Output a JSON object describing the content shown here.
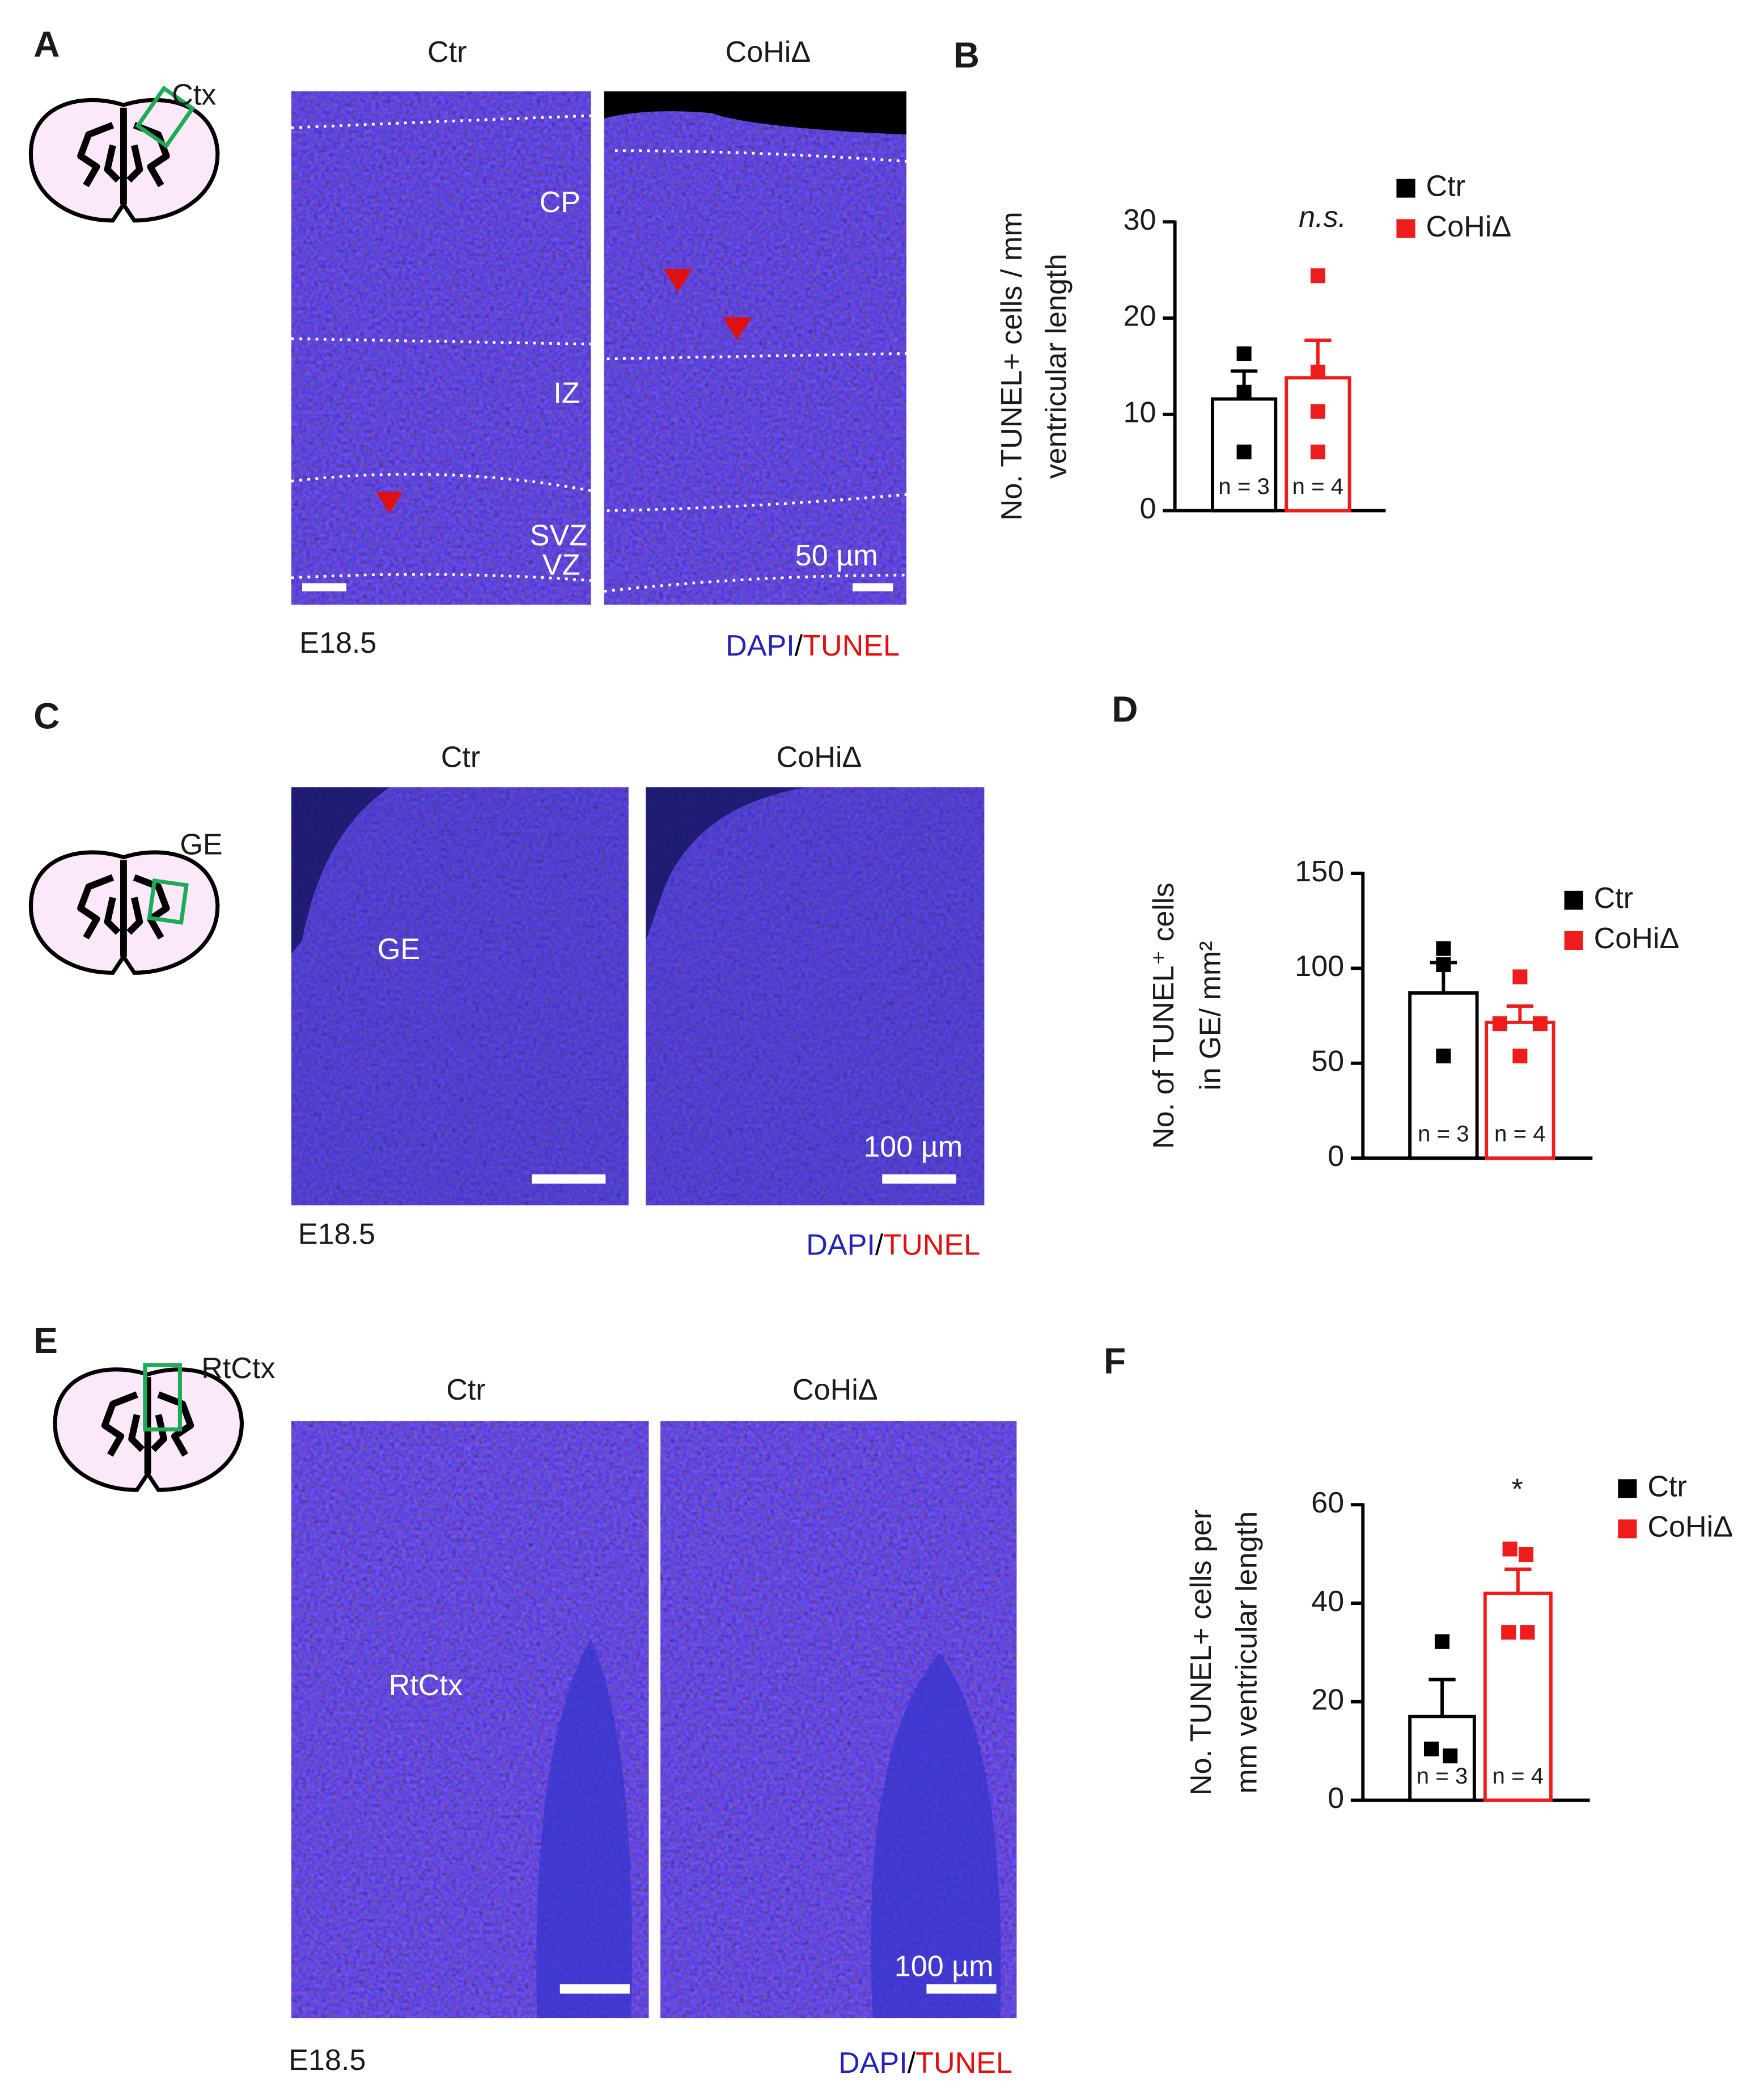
{
  "panel_labels": [
    "A",
    "B",
    "C",
    "D",
    "E",
    "F"
  ],
  "image_panels": [
    {
      "region": "Ctx",
      "conditions": [
        "Ctr",
        "CoHiΔ"
      ],
      "layers": [
        "CP",
        "IZ",
        "SVZ",
        "VZ"
      ],
      "scale_bar": "50 µm",
      "stage": "E18.5",
      "stain": [
        "DAPI",
        "/",
        "TUNEL"
      ]
    },
    {
      "region": "GE",
      "conditions": [
        "Ctr",
        "CoHiΔ"
      ],
      "region_label": "GE",
      "scale_bar": "100 µm",
      "stage": "E18.5",
      "stain": [
        "DAPI",
        "/",
        "TUNEL"
      ]
    },
    {
      "region": "RtCtx",
      "conditions": [
        "Ctr",
        "CoHiΔ"
      ],
      "region_label": "RtCtx",
      "scale_bar": "100 µm",
      "stage": "E18.5",
      "stain": [
        "DAPI",
        "/",
        "TUNEL"
      ]
    }
  ],
  "chart_data": [
    {
      "type": "bar",
      "y_label": [
        "No. TUNEL+ cells / mm",
        "ventricular length"
      ],
      "ylim": [
        0,
        30
      ],
      "yticks": [
        0,
        10,
        20,
        30
      ],
      "annotation": "n.s.",
      "series": [
        {
          "name": "Ctr",
          "color": "#000000",
          "values": [
            11.6
          ],
          "errors": [
            2.9
          ],
          "points": [
            16.3,
            12.3,
            6.1
          ],
          "n_label": "n = 3"
        },
        {
          "name": "CoHiΔ",
          "color": "#ee1c1c",
          "values": [
            13.8
          ],
          "errors": [
            3.9
          ],
          "points": [
            24.4,
            14.4,
            10.3,
            6.1
          ],
          "n_label": "n = 4"
        }
      ]
    },
    {
      "type": "bar",
      "y_label": [
        "No. of  TUNEL⁺ cells",
        "in GE/ mm²"
      ],
      "ylim": [
        0,
        150
      ],
      "yticks": [
        0,
        50,
        100,
        150
      ],
      "series": [
        {
          "name": "Ctr",
          "color": "#000000",
          "values": [
            87
          ],
          "errors": [
            16
          ],
          "points": [
            110.4,
            101.9,
            53.8
          ],
          "n_label": "n = 3"
        },
        {
          "name": "CoHiΔ",
          "color": "#ee1c1c",
          "values": [
            71.5
          ],
          "errors": [
            8.6
          ],
          "points": [
            95.5,
            70.8,
            70.8,
            53.8
          ],
          "n_label": "n = 4"
        }
      ]
    },
    {
      "type": "bar",
      "y_label": [
        "No. TUNEL+ cells per",
        "mm ventricular length"
      ],
      "ylim": [
        0,
        60
      ],
      "yticks": [
        0,
        20,
        40,
        60
      ],
      "annotation": "*",
      "series": [
        {
          "name": "Ctr",
          "color": "#000000",
          "values": [
            17
          ],
          "errors": [
            7.5
          ],
          "points": [
            32.2,
            10.4,
            9
          ],
          "n_label": "n = 3"
        },
        {
          "name": "CoHiΔ",
          "color": "#ee1c1c",
          "values": [
            42
          ],
          "errors": [
            4.9
          ],
          "points": [
            51,
            49.9,
            34.1,
            34.1
          ],
          "n_label": "n = 4"
        }
      ]
    }
  ]
}
